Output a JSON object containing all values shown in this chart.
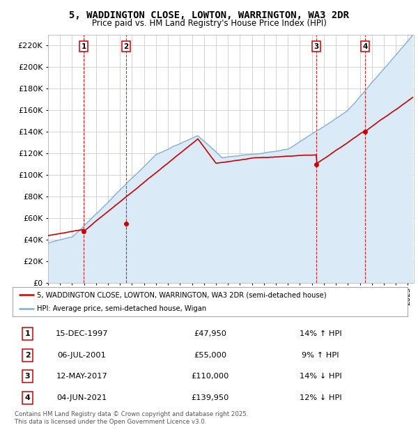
{
  "title_line1": "5, WADDINGTON CLOSE, LOWTON, WARRINGTON, WA3 2DR",
  "title_line2": "Price paid vs. HM Land Registry's House Price Index (HPI)",
  "ylim": [
    0,
    230000
  ],
  "yticks": [
    0,
    20000,
    40000,
    60000,
    80000,
    100000,
    120000,
    140000,
    160000,
    180000,
    200000,
    220000
  ],
  "sale_color": "#cc0000",
  "hpi_color": "#7eadd4",
  "hpi_fill_color": "#daeaf7",
  "vline_color": "#cc0000",
  "grid_color": "#cccccc",
  "bg_color": "#ffffff",
  "plot_bg_color": "#ffffff",
  "transactions": [
    {
      "num": 1,
      "date": "15-DEC-1997",
      "price": 47950,
      "pct": "14%",
      "dir": "↑",
      "x_year": 1997.96
    },
    {
      "num": 2,
      "date": "06-JUL-2001",
      "price": 55000,
      "pct": "9%",
      "dir": "↑",
      "x_year": 2001.51
    },
    {
      "num": 3,
      "date": "12-MAY-2017",
      "price": 110000,
      "pct": "14%",
      "dir": "↓",
      "x_year": 2017.36
    },
    {
      "num": 4,
      "date": "04-JUN-2021",
      "price": 139950,
      "pct": "12%",
      "dir": "↓",
      "x_year": 2021.43
    }
  ],
  "legend_sale_label": "5, WADDINGTON CLOSE, LOWTON, WARRINGTON, WA3 2DR (semi-detached house)",
  "legend_hpi_label": "HPI: Average price, semi-detached house, Wigan",
  "footer": "Contains HM Land Registry data © Crown copyright and database right 2025.\nThis data is licensed under the Open Government Licence v3.0.",
  "xmin": 1995.0,
  "xmax": 2025.5
}
